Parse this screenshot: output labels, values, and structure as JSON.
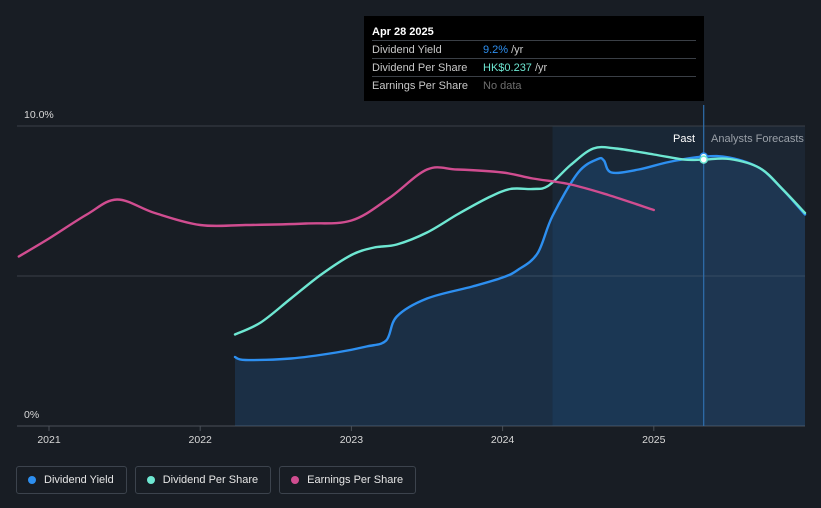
{
  "tooltip": {
    "date": "Apr 28 2025",
    "rows": [
      {
        "name": "Dividend Yield",
        "value": "9.2%",
        "unit": "/yr",
        "color": "#2d8ff0"
      },
      {
        "name": "Dividend Per Share",
        "value": "HK$0.237",
        "unit": "/yr",
        "color": "#6ee7d2"
      },
      {
        "name": "Earnings Per Share",
        "value": "No data",
        "unit": "",
        "color": ""
      }
    ]
  },
  "legend": [
    {
      "label": "Dividend Yield",
      "color": "#2d8ff0"
    },
    {
      "label": "Dividend Per Share",
      "color": "#6ee7d2"
    },
    {
      "label": "Earnings Per Share",
      "color": "#d04d90"
    }
  ],
  "chart_data": {
    "type": "line",
    "x_ticks": [
      2021,
      2022,
      2023,
      2024,
      2025
    ],
    "y_ticks": [
      "10.0%",
      "0%"
    ],
    "y_range": [
      0,
      10
    ],
    "x_range": [
      2020.8,
      2026.0
    ],
    "past_label": "Past",
    "forecast_label": "Analysts Forecasts",
    "past_start": 2024.33,
    "forecast_start": 2025.33,
    "grid": true,
    "series": [
      {
        "name": "Dividend Yield",
        "color": "#2d8ff0",
        "area": true,
        "points": [
          [
            2022.23,
            2.3
          ],
          [
            2022.3,
            2.2
          ],
          [
            2022.6,
            2.25
          ],
          [
            2022.9,
            2.45
          ],
          [
            2023.1,
            2.65
          ],
          [
            2023.23,
            2.85
          ],
          [
            2023.3,
            3.65
          ],
          [
            2023.5,
            4.25
          ],
          [
            2023.8,
            4.65
          ],
          [
            2024.0,
            4.95
          ],
          [
            2024.1,
            5.2
          ],
          [
            2024.23,
            5.75
          ],
          [
            2024.33,
            7.0
          ],
          [
            2024.5,
            8.45
          ],
          [
            2024.63,
            8.9
          ],
          [
            2024.67,
            8.85
          ],
          [
            2024.72,
            8.45
          ],
          [
            2024.9,
            8.55
          ],
          [
            2025.1,
            8.8
          ],
          [
            2025.33,
            8.98
          ],
          [
            2025.5,
            8.95
          ],
          [
            2025.7,
            8.6
          ],
          [
            2025.85,
            7.9
          ],
          [
            2026.0,
            7.05
          ]
        ]
      },
      {
        "name": "Dividend Per Share",
        "color": "#6ee7d2",
        "area": false,
        "points": [
          [
            2022.23,
            3.05
          ],
          [
            2022.4,
            3.45
          ],
          [
            2022.6,
            4.25
          ],
          [
            2022.8,
            5.05
          ],
          [
            2023.0,
            5.7
          ],
          [
            2023.15,
            5.95
          ],
          [
            2023.3,
            6.05
          ],
          [
            2023.5,
            6.45
          ],
          [
            2023.7,
            7.05
          ],
          [
            2023.9,
            7.6
          ],
          [
            2024.05,
            7.9
          ],
          [
            2024.2,
            7.9
          ],
          [
            2024.3,
            8.0
          ],
          [
            2024.45,
            8.7
          ],
          [
            2024.6,
            9.25
          ],
          [
            2024.75,
            9.25
          ],
          [
            2025.0,
            9.05
          ],
          [
            2025.2,
            8.88
          ],
          [
            2025.33,
            8.88
          ],
          [
            2025.5,
            8.9
          ],
          [
            2025.7,
            8.6
          ],
          [
            2025.85,
            7.9
          ],
          [
            2026.0,
            7.1
          ]
        ]
      },
      {
        "name": "Earnings Per Share",
        "color": "#d04d90",
        "area": false,
        "points": [
          [
            2020.8,
            5.65
          ],
          [
            2021.0,
            6.25
          ],
          [
            2021.25,
            7.05
          ],
          [
            2021.45,
            7.55
          ],
          [
            2021.7,
            7.1
          ],
          [
            2022.0,
            6.7
          ],
          [
            2022.3,
            6.7
          ],
          [
            2022.7,
            6.75
          ],
          [
            2023.0,
            6.85
          ],
          [
            2023.25,
            7.6
          ],
          [
            2023.5,
            8.55
          ],
          [
            2023.7,
            8.55
          ],
          [
            2024.0,
            8.45
          ],
          [
            2024.2,
            8.25
          ],
          [
            2024.45,
            8.05
          ],
          [
            2024.7,
            7.7
          ],
          [
            2025.0,
            7.2
          ]
        ]
      }
    ]
  }
}
